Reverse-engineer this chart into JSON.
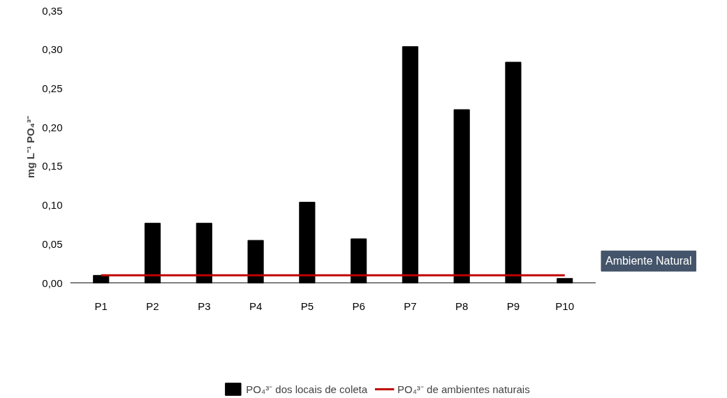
{
  "chart_data": {
    "type": "bar",
    "ylabel": "mg L⁻¹ PO₄³⁻",
    "categories": [
      "P1",
      "P2",
      "P3",
      "P4",
      "P5",
      "P6",
      "P7",
      "P8",
      "P9",
      "P10"
    ],
    "series": [
      {
        "name": "PO₄³⁻ dos locais de coleta",
        "color": "#000000",
        "values": [
          0.01,
          0.077,
          0.077,
          0.055,
          0.104,
          0.057,
          0.304,
          0.223,
          0.284,
          0.006
        ]
      },
      {
        "name": "PO₄³⁻ de ambientes naturais",
        "type": "line",
        "color": "#c00000",
        "values": [
          0.01,
          0.01,
          0.01,
          0.01,
          0.01,
          0.01,
          0.01,
          0.01,
          0.01,
          0.01
        ]
      }
    ],
    "annotations": [
      "Ambiente Natural"
    ],
    "ylim": [
      0,
      0.35
    ],
    "yticks": [
      {
        "value": 0,
        "label": "0,00"
      },
      {
        "value": 0.05,
        "label": "0,05"
      },
      {
        "value": 0.1,
        "label": "0,10"
      },
      {
        "value": 0.15,
        "label": "0,15"
      },
      {
        "value": 0.2,
        "label": "0,20"
      },
      {
        "value": 0.25,
        "label": "0,25"
      },
      {
        "value": 0.3,
        "label": "0,30"
      },
      {
        "value": 0.35,
        "label": "0,35"
      }
    ],
    "grid": false,
    "legend": "bottom"
  }
}
